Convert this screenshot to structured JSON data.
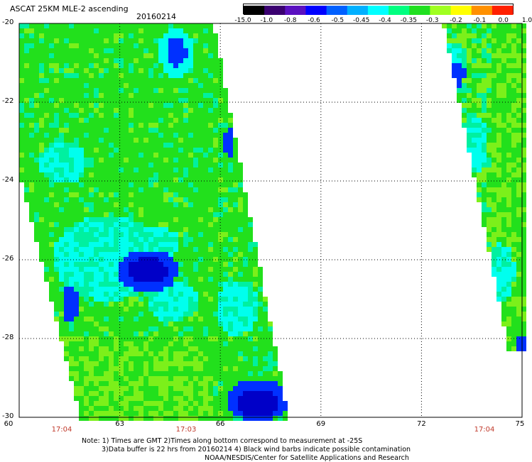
{
  "header": {
    "title": "ASCAT 25KM MLE-2 ascending",
    "date": "20160214"
  },
  "colorbar": {
    "labels": [
      "-15.0",
      "-1.0",
      "-0.8",
      "-0.6",
      "-0.5",
      "-0.45",
      "-0.4",
      "-0.35",
      "-0.3",
      "-0.2",
      "-0.1",
      "0.0",
      "1.0"
    ],
    "colors": [
      "#000000",
      "#3a0070",
      "#5a10c0",
      "#0000ff",
      "#0060ff",
      "#00b0ff",
      "#00ffff",
      "#00ff80",
      "#20e020",
      "#a0ff20",
      "#ffff00",
      "#ff9000",
      "#ff2000"
    ]
  },
  "map": {
    "lat_labels": [
      "-20",
      "-22",
      "-24",
      "-26",
      "-28",
      "-30"
    ],
    "lon_labels": [
      "60",
      "63",
      "66",
      "69",
      "72",
      "75"
    ],
    "time_labels": [
      "17:04",
      "17:03",
      "17:04"
    ]
  },
  "notes": {
    "line1": "Note: 1) Times are GMT 2)Times along bottom correspond to measurement at -25S",
    "line2": "3)Data buffer is 22 hrs from 20160214 4) Black wind barbs indicate possible contamination",
    "line3": "NOAA/NESDIS/Center for Satellite Applications and Research"
  },
  "swath_colors": {
    "green": "#22e01c",
    "light_green": "#7cf01a",
    "cyan": "#00ffee",
    "aqua": "#00f0a0",
    "blue": "#0030ff",
    "deep_blue": "#0000c8"
  }
}
